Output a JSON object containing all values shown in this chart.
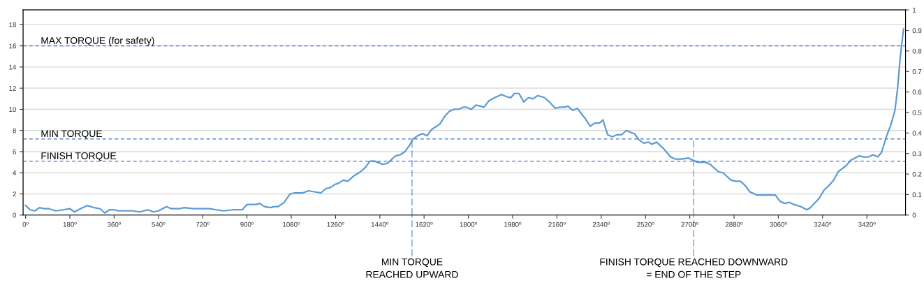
{
  "chart_data": {
    "type": "line",
    "x": [
      0,
      19,
      38,
      57,
      76,
      95,
      123,
      152,
      180,
      199,
      223,
      251,
      279,
      303,
      322,
      341,
      360,
      379,
      407,
      436,
      464,
      497,
      521,
      540,
      573,
      592,
      625,
      644,
      682,
      720,
      748,
      776,
      805,
      843,
      881,
      900,
      919,
      938,
      952,
      971,
      994,
      1013,
      1027,
      1051,
      1075,
      1094,
      1127,
      1150,
      1174,
      1201,
      1220,
      1239,
      1258,
      1272,
      1291,
      1310,
      1334,
      1362,
      1381,
      1400,
      1419,
      1452,
      1471,
      1504,
      1523,
      1542,
      1561,
      1575,
      1594,
      1613,
      1632,
      1651,
      1684,
      1703,
      1722,
      1741,
      1760,
      1779,
      1793,
      1812,
      1831,
      1864,
      1883,
      1907,
      1935,
      1954,
      1973,
      1987,
      2006,
      2025,
      2044,
      2063,
      2082,
      2110,
      2129,
      2153,
      2172,
      2191,
      2205,
      2224,
      2243,
      2262,
      2276,
      2295,
      2314,
      2333,
      2347,
      2366,
      2385,
      2404,
      2423,
      2442,
      2461,
      2475,
      2494,
      2513,
      2532,
      2546,
      2565,
      2593,
      2622,
      2641,
      2669,
      2693,
      2712,
      2731,
      2764,
      2783,
      2816,
      2835,
      2868,
      2887,
      2906,
      2925,
      2944,
      2972,
      2991,
      3020,
      3048,
      3067,
      3086,
      3105,
      3124,
      3152,
      3176,
      3190,
      3223,
      3247,
      3266,
      3285,
      3303,
      3332,
      3356,
      3389,
      3408,
      3426,
      3445,
      3464,
      3479,
      3502,
      3517,
      3534,
      3545,
      3555,
      3569
    ],
    "series": [
      {
        "color": "#5b9bd5",
        "values": [
          0.9,
          0.5,
          0.4,
          0.7,
          0.6,
          0.6,
          0.4,
          0.5,
          0.6,
          0.3,
          0.6,
          0.9,
          0.7,
          0.6,
          0.2,
          0.5,
          0.5,
          0.4,
          0.4,
          0.4,
          0.3,
          0.5,
          0.3,
          0.4,
          0.8,
          0.6,
          0.6,
          0.7,
          0.6,
          0.6,
          0.6,
          0.5,
          0.4,
          0.5,
          0.5,
          1.0,
          1.0,
          1.0,
          1.1,
          0.8,
          0.7,
          0.8,
          0.8,
          1.2,
          2.0,
          2.1,
          2.1,
          2.3,
          2.2,
          2.1,
          2.5,
          2.6,
          2.9,
          3.0,
          3.3,
          3.2,
          3.7,
          4.1,
          4.5,
          5.1,
          5.1,
          4.8,
          4.9,
          5.6,
          5.7,
          6.0,
          6.6,
          7.2,
          7.5,
          7.7,
          7.5,
          8.1,
          8.6,
          9.3,
          9.8,
          10.0,
          10.0,
          10.2,
          10.2,
          10.0,
          10.4,
          10.2,
          10.8,
          11.1,
          11.4,
          11.2,
          11.1,
          11.5,
          11.5,
          10.7,
          11.1,
          11.0,
          11.3,
          11.1,
          10.7,
          10.1,
          10.2,
          10.2,
          10.3,
          9.9,
          10.1,
          9.5,
          9.1,
          8.4,
          8.7,
          8.7,
          9.0,
          7.6,
          7.4,
          7.6,
          7.6,
          8.0,
          7.8,
          7.7,
          7.1,
          6.8,
          6.9,
          6.7,
          6.9,
          6.3,
          5.5,
          5.3,
          5.3,
          5.4,
          5.2,
          5.0,
          5.0,
          4.8,
          4.1,
          4.0,
          3.3,
          3.2,
          3.2,
          2.8,
          2.2,
          1.9,
          1.9,
          1.9,
          1.9,
          1.3,
          1.1,
          1.2,
          1.0,
          0.8,
          0.5,
          0.7,
          1.5,
          2.4,
          2.8,
          3.3,
          4.1,
          4.6,
          5.2,
          5.6,
          5.5,
          5.5,
          5.7,
          5.5,
          5.9,
          7.6,
          8.5,
          9.9,
          12.0,
          14.8,
          17.6
        ]
      }
    ],
    "xlim": [
      -10,
      3577
    ],
    "xticks": [
      {
        "value": 0,
        "label": "0º"
      },
      {
        "value": 180,
        "label": "180º"
      },
      {
        "value": 360,
        "label": "360º"
      },
      {
        "value": 540,
        "label": "540º"
      },
      {
        "value": 720,
        "label": "720º"
      },
      {
        "value": 900,
        "label": "900º"
      },
      {
        "value": 1080,
        "label": "1080º"
      },
      {
        "value": 1260,
        "label": "1260º"
      },
      {
        "value": 1440,
        "label": "1440º"
      },
      {
        "value": 1620,
        "label": "1620º"
      },
      {
        "value": 1800,
        "label": "1800º"
      },
      {
        "value": 1980,
        "label": "1980º"
      },
      {
        "value": 2160,
        "label": "2160º"
      },
      {
        "value": 2340,
        "label": "2340º"
      },
      {
        "value": 2520,
        "label": "2520º"
      },
      {
        "value": 2700,
        "label": "2700º"
      },
      {
        "value": 2880,
        "label": "2880º"
      },
      {
        "value": 3060,
        "label": "3060º"
      },
      {
        "value": 3240,
        "label": "3240º"
      },
      {
        "value": 3420,
        "label": "3420º"
      }
    ],
    "ylim": [
      0,
      19.4
    ],
    "yticks": [
      0,
      2,
      4,
      6,
      8,
      10,
      12,
      14,
      16,
      18
    ],
    "y2lim": [
      0,
      1
    ],
    "y2ticks": [
      0,
      0.1,
      0.2,
      0.3,
      0.4,
      0.5,
      0.6,
      0.7,
      0.8,
      0.9,
      1
    ],
    "grid": "y",
    "legend": false,
    "marker": "none",
    "line_style": "solid",
    "ref_lines": [
      {
        "axis": "y",
        "value": 16,
        "label": "MAX TORQUE (for safety)",
        "color": "#4472c4",
        "line_style": "dashed"
      },
      {
        "axis": "y",
        "value": 7.2,
        "label": "MIN TORQUE",
        "color": "#4472c4",
        "line_style": "dashed"
      },
      {
        "axis": "y",
        "value": 5.1,
        "label": "FINISH TORQUE",
        "color": "#4472c4",
        "line_style": "dashed"
      },
      {
        "axis": "x",
        "value": 1571,
        "label": "MIN TORQUE\nREACHED UPWARD",
        "color": "#4472c4",
        "line_style": "dashed"
      },
      {
        "axis": "x",
        "value": 2716,
        "label": "FINISH TORQUE REACHED DOWNWARD\n= END OF THE STEP",
        "color": "#4472c4",
        "line_style": "dashed"
      }
    ]
  }
}
